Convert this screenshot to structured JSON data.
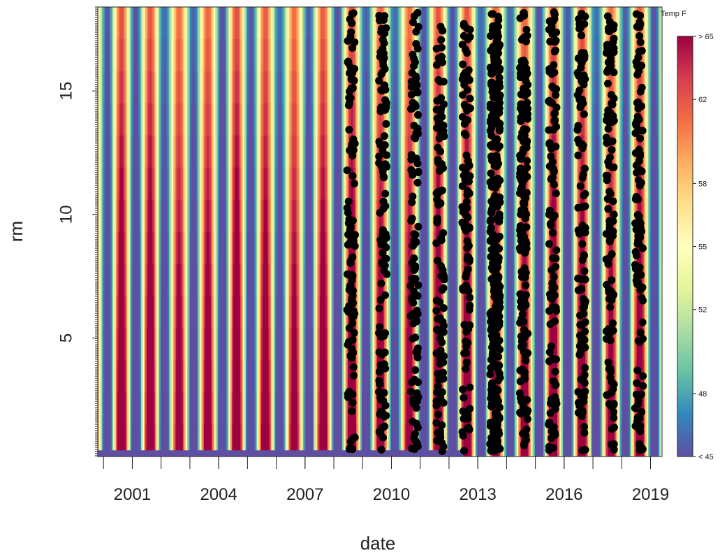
{
  "chart_data": {
    "type": "heatmap",
    "title": "",
    "xlabel": "date",
    "ylabel": "rm",
    "xlim": [
      1999.8,
      2019.4
    ],
    "ylim": [
      0.2,
      18.4
    ],
    "x_ticks": [
      {
        "value": 2001,
        "label": "2001"
      },
      {
        "value": 2004,
        "label": "2004"
      },
      {
        "value": 2007,
        "label": "2007"
      },
      {
        "value": 2010,
        "label": "2010"
      },
      {
        "value": 2013,
        "label": "2013"
      },
      {
        "value": 2016,
        "label": "2016"
      },
      {
        "value": 2019,
        "label": "2019"
      }
    ],
    "y_ticks": [
      {
        "value": 5,
        "label": "5"
      },
      {
        "value": 10,
        "label": "10"
      },
      {
        "value": 15,
        "label": "15"
      }
    ],
    "grid": false,
    "legend": {
      "title": "Temp F",
      "position": "right",
      "min": 45,
      "max": 65,
      "ticks": [
        {
          "value": 45,
          "label": "< 45"
        },
        {
          "value": 48,
          "label": "48"
        },
        {
          "value": 52,
          "label": "52"
        },
        {
          "value": 55,
          "label": "55"
        },
        {
          "value": 58,
          "label": "58"
        },
        {
          "value": 62,
          "label": "62"
        },
        {
          "value": 65,
          "label": "> 65"
        }
      ],
      "colors": [
        "#5e4fa2",
        "#3288bd",
        "#66c2a5",
        "#abdda4",
        "#e6f598",
        "#ffffbf",
        "#fee08b",
        "#fdae61",
        "#f46d43",
        "#d53e4f",
        "#9e0142"
      ]
    },
    "temperature_field": {
      "description_of_pattern": "seasonal cycle along date; warm peaks mid-year, cold troughs in winter; warmer at low rm",
      "min_temp": 45,
      "max_temp": 67
    },
    "observation_years": [
      2008.6,
      2009.7,
      2010.8,
      2011.7,
      2012.6,
      2013.6,
      2014.6,
      2015.6,
      2016.6,
      2017.6,
      2018.6
    ],
    "observations_rm_range": [
      0.4,
      18.2
    ],
    "series": [
      {
        "name": "",
        "type": "scatter",
        "marker_color": "#000000"
      }
    ]
  }
}
